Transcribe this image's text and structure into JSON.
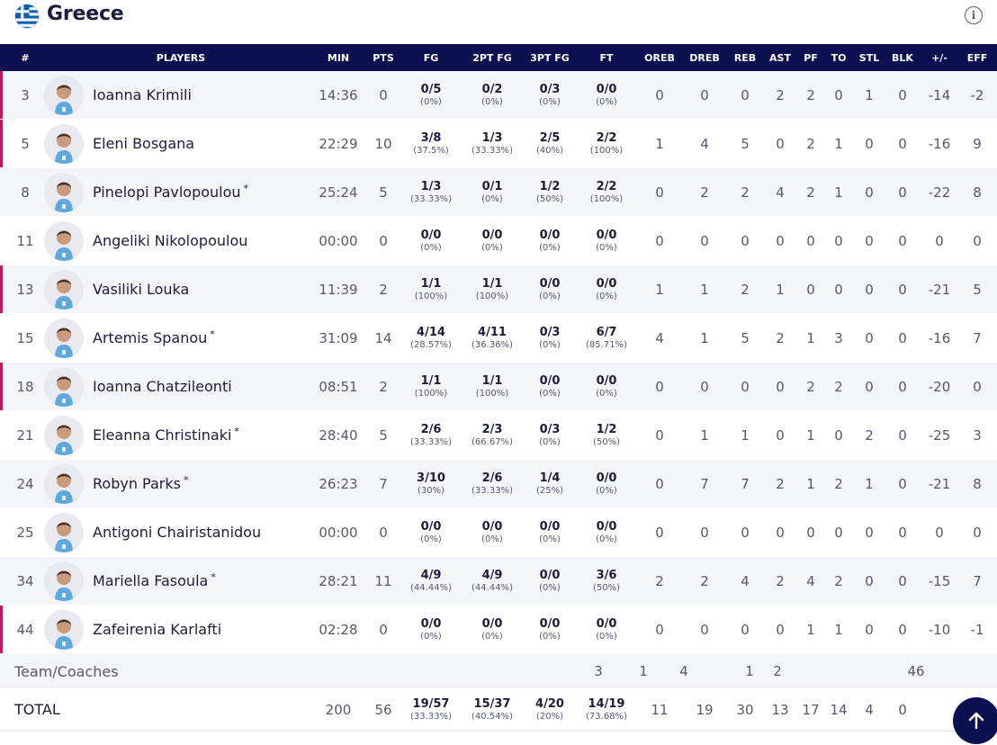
{
  "team": {
    "name": "Greece",
    "info_icon": "info-icon",
    "flag_colors": {
      "blue": "#0d5eaf",
      "white": "#ffffff"
    }
  },
  "columns": [
    "#",
    "PLAYERS",
    "MIN",
    "PTS",
    "FG",
    "2PT FG",
    "3PT FG",
    "FT",
    "OREB",
    "DREB",
    "REB",
    "AST",
    "PF",
    "TO",
    "STL",
    "BLK",
    "+/-",
    "EFF"
  ],
  "players": [
    {
      "num": "3",
      "name": "Ioanna Krimili",
      "starter": false,
      "sub": true,
      "min": "14:36",
      "pts": "0",
      "fg": "0/5",
      "fg_pct": "(0%)",
      "p2": "0/2",
      "p2_pct": "(0%)",
      "p3": "0/3",
      "p3_pct": "(0%)",
      "ft": "0/0",
      "ft_pct": "(0%)",
      "oreb": "0",
      "dreb": "0",
      "reb": "0",
      "ast": "2",
      "pf": "2",
      "to": "0",
      "stl": "1",
      "blk": "0",
      "pm": "-14",
      "eff": "-2"
    },
    {
      "num": "5",
      "name": "Eleni Bosgana",
      "starter": false,
      "sub": true,
      "min": "22:29",
      "pts": "10",
      "fg": "3/8",
      "fg_pct": "(37.5%)",
      "p2": "1/3",
      "p2_pct": "(33.33%)",
      "p3": "2/5",
      "p3_pct": "(40%)",
      "ft": "2/2",
      "ft_pct": "(100%)",
      "oreb": "1",
      "dreb": "4",
      "reb": "5",
      "ast": "0",
      "pf": "2",
      "to": "1",
      "stl": "0",
      "blk": "0",
      "pm": "-16",
      "eff": "9"
    },
    {
      "num": "8",
      "name": "Pinelopi Pavlopoulou",
      "starter": true,
      "sub": false,
      "min": "25:24",
      "pts": "5",
      "fg": "1/3",
      "fg_pct": "(33.33%)",
      "p2": "0/1",
      "p2_pct": "(0%)",
      "p3": "1/2",
      "p3_pct": "(50%)",
      "ft": "2/2",
      "ft_pct": "(100%)",
      "oreb": "0",
      "dreb": "2",
      "reb": "2",
      "ast": "4",
      "pf": "2",
      "to": "1",
      "stl": "0",
      "blk": "0",
      "pm": "-22",
      "eff": "8"
    },
    {
      "num": "11",
      "name": "Angeliki Nikolopoulou",
      "starter": false,
      "sub": false,
      "min": "00:00",
      "pts": "0",
      "fg": "0/0",
      "fg_pct": "(0%)",
      "p2": "0/0",
      "p2_pct": "(0%)",
      "p3": "0/0",
      "p3_pct": "(0%)",
      "ft": "0/0",
      "ft_pct": "(0%)",
      "oreb": "0",
      "dreb": "0",
      "reb": "0",
      "ast": "0",
      "pf": "0",
      "to": "0",
      "stl": "0",
      "blk": "0",
      "pm": "0",
      "eff": "0"
    },
    {
      "num": "13",
      "name": "Vasiliki Louka",
      "starter": false,
      "sub": true,
      "min": "11:39",
      "pts": "2",
      "fg": "1/1",
      "fg_pct": "(100%)",
      "p2": "1/1",
      "p2_pct": "(100%)",
      "p3": "0/0",
      "p3_pct": "(0%)",
      "ft": "0/0",
      "ft_pct": "(0%)",
      "oreb": "1",
      "dreb": "1",
      "reb": "2",
      "ast": "1",
      "pf": "0",
      "to": "0",
      "stl": "0",
      "blk": "0",
      "pm": "-21",
      "eff": "5"
    },
    {
      "num": "15",
      "name": "Artemis Spanou",
      "starter": true,
      "sub": false,
      "min": "31:09",
      "pts": "14",
      "fg": "4/14",
      "fg_pct": "(28.57%)",
      "p2": "4/11",
      "p2_pct": "(36.36%)",
      "p3": "0/3",
      "p3_pct": "(0%)",
      "ft": "6/7",
      "ft_pct": "(85.71%)",
      "oreb": "4",
      "dreb": "1",
      "reb": "5",
      "ast": "2",
      "pf": "1",
      "to": "3",
      "stl": "0",
      "blk": "0",
      "pm": "-16",
      "eff": "7"
    },
    {
      "num": "18",
      "name": "Ioanna Chatzileonti",
      "starter": false,
      "sub": true,
      "min": "08:51",
      "pts": "2",
      "fg": "1/1",
      "fg_pct": "(100%)",
      "p2": "1/1",
      "p2_pct": "(100%)",
      "p3": "0/0",
      "p3_pct": "(0%)",
      "ft": "0/0",
      "ft_pct": "(0%)",
      "oreb": "0",
      "dreb": "0",
      "reb": "0",
      "ast": "0",
      "pf": "2",
      "to": "2",
      "stl": "0",
      "blk": "0",
      "pm": "-20",
      "eff": "0"
    },
    {
      "num": "21",
      "name": "Eleanna Christinaki",
      "starter": true,
      "sub": false,
      "min": "28:40",
      "pts": "5",
      "fg": "2/6",
      "fg_pct": "(33.33%)",
      "p2": "2/3",
      "p2_pct": "(66.67%)",
      "p3": "0/3",
      "p3_pct": "(0%)",
      "ft": "1/2",
      "ft_pct": "(50%)",
      "oreb": "0",
      "dreb": "1",
      "reb": "1",
      "ast": "0",
      "pf": "1",
      "to": "0",
      "stl": "2",
      "blk": "0",
      "pm": "-25",
      "eff": "3"
    },
    {
      "num": "24",
      "name": "Robyn Parks",
      "starter": true,
      "sub": false,
      "min": "26:23",
      "pts": "7",
      "fg": "3/10",
      "fg_pct": "(30%)",
      "p2": "2/6",
      "p2_pct": "(33.33%)",
      "p3": "1/4",
      "p3_pct": "(25%)",
      "ft": "0/0",
      "ft_pct": "(0%)",
      "oreb": "0",
      "dreb": "7",
      "reb": "7",
      "ast": "2",
      "pf": "1",
      "to": "2",
      "stl": "1",
      "blk": "0",
      "pm": "-21",
      "eff": "8"
    },
    {
      "num": "25",
      "name": "Antigoni Chairistanidou",
      "starter": false,
      "sub": false,
      "min": "00:00",
      "pts": "0",
      "fg": "0/0",
      "fg_pct": "(0%)",
      "p2": "0/0",
      "p2_pct": "(0%)",
      "p3": "0/0",
      "p3_pct": "(0%)",
      "ft": "0/0",
      "ft_pct": "(0%)",
      "oreb": "0",
      "dreb": "0",
      "reb": "0",
      "ast": "0",
      "pf": "0",
      "to": "0",
      "stl": "0",
      "blk": "0",
      "pm": "0",
      "eff": "0"
    },
    {
      "num": "34",
      "name": "Mariella Fasoula",
      "starter": true,
      "sub": false,
      "min": "28:21",
      "pts": "11",
      "fg": "4/9",
      "fg_pct": "(44.44%)",
      "p2": "4/9",
      "p2_pct": "(44.44%)",
      "p3": "0/0",
      "p3_pct": "(0%)",
      "ft": "3/6",
      "ft_pct": "(50%)",
      "oreb": "2",
      "dreb": "2",
      "reb": "4",
      "ast": "2",
      "pf": "4",
      "to": "2",
      "stl": "0",
      "blk": "0",
      "pm": "-15",
      "eff": "7"
    },
    {
      "num": "44",
      "name": "Zafeirenia Karlafti",
      "starter": false,
      "sub": true,
      "min": "02:28",
      "pts": "0",
      "fg": "0/0",
      "fg_pct": "(0%)",
      "p2": "0/0",
      "p2_pct": "(0%)",
      "p3": "0/0",
      "p3_pct": "(0%)",
      "ft": "0/0",
      "ft_pct": "(0%)",
      "oreb": "0",
      "dreb": "0",
      "reb": "0",
      "ast": "0",
      "pf": "1",
      "to": "1",
      "stl": "0",
      "blk": "0",
      "pm": "-10",
      "eff": "-1"
    }
  ],
  "team_coaches": {
    "label": "Team/Coaches",
    "oreb": "3",
    "dreb": "1",
    "reb": "4",
    "pf": "1",
    "to": "2",
    "eff": "46"
  },
  "total": {
    "label": "TOTAL",
    "min": "200",
    "pts": "56",
    "fg": "19/57",
    "fg_pct": "(33.33%)",
    "p2": "15/37",
    "p2_pct": "(40.54%)",
    "p3": "4/20",
    "p3_pct": "(20%)",
    "ft": "14/19",
    "ft_pct": "(73.68%)",
    "oreb": "11",
    "dreb": "19",
    "reb": "30",
    "ast": "13",
    "pf": "17",
    "to": "14",
    "stl": "4",
    "blk": "0"
  },
  "scroll_top_icon": "arrow-up-icon",
  "colors": {
    "header_bg": "#0b1150",
    "sub_marker": "#c2185b",
    "row_alt": "#f4f5f8",
    "jersey": "#5fa8dc"
  },
  "starter_marker": "*"
}
